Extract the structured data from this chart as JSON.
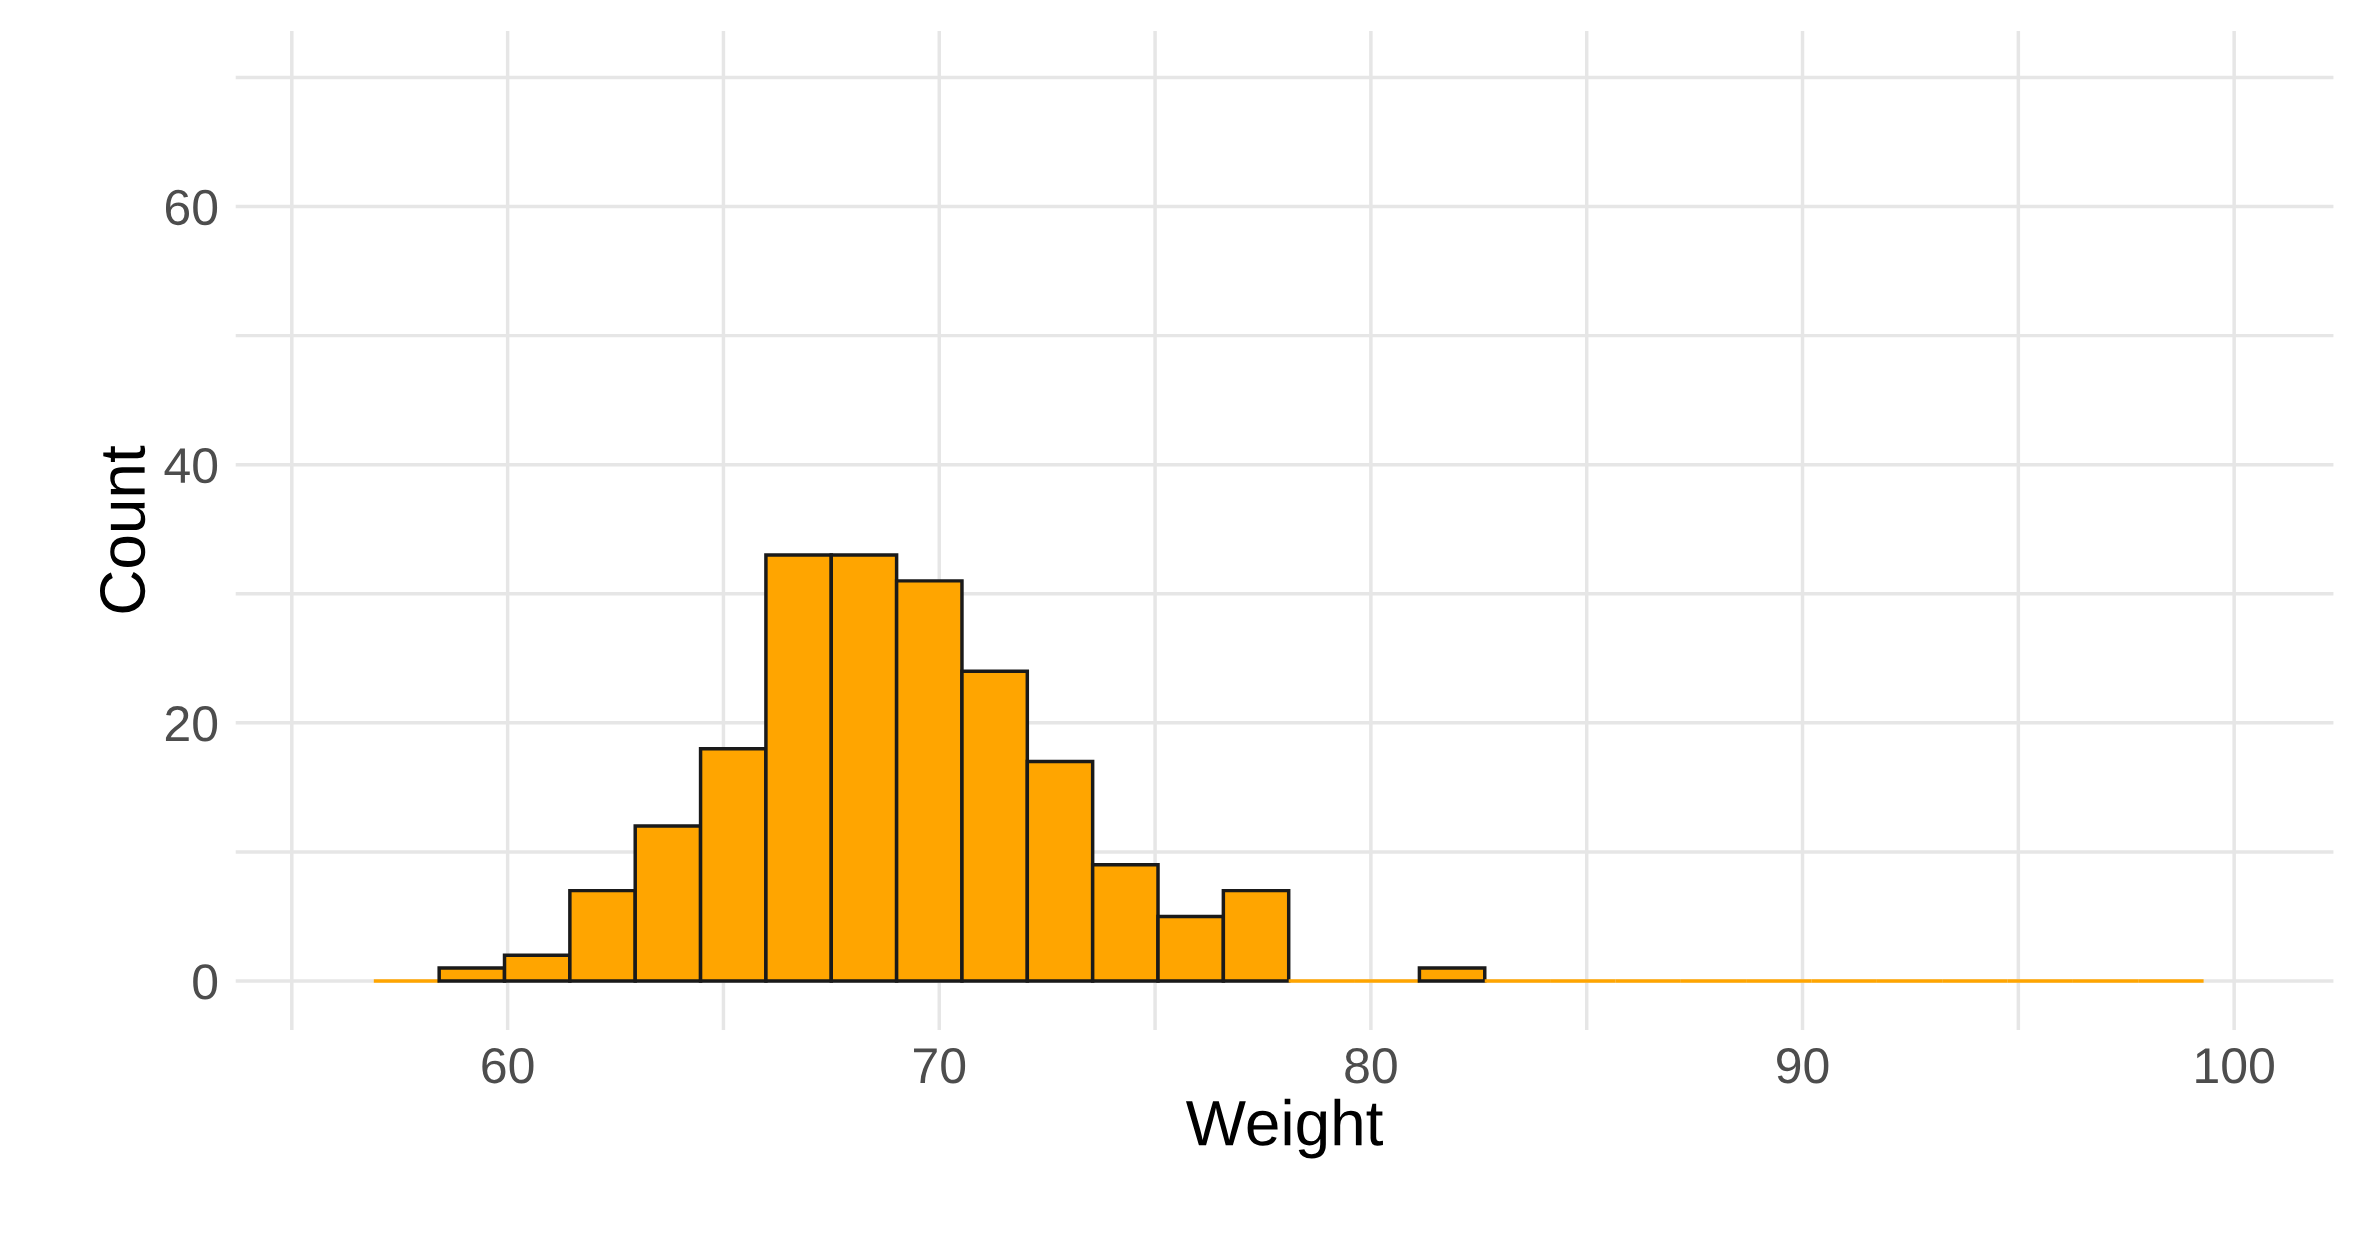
{
  "chart_data": {
    "type": "histogram",
    "xlabel": "Weight",
    "ylabel": "Count",
    "bins": [
      56.9,
      58.414,
      59.928,
      61.442,
      62.956,
      64.47,
      65.984,
      67.498,
      69.012,
      70.526,
      72.04,
      73.554,
      75.068,
      76.582,
      78.096,
      79.61,
      81.124,
      82.638,
      84.152,
      85.666,
      87.18,
      88.694,
      90.208,
      91.722,
      93.236,
      94.75,
      96.264,
      97.778,
      99.292
    ],
    "values": [
      0,
      1,
      2,
      7,
      12,
      18,
      33,
      33,
      31,
      24,
      17,
      9,
      5,
      7,
      0,
      0,
      1,
      0,
      0,
      0,
      0,
      0,
      0,
      0,
      0,
      0,
      0,
      0
    ],
    "color": "#ffa500",
    "xlim": [
      53.7,
      102.3
    ],
    "ylim": [
      -3.8,
      73.6
    ],
    "xticks": [
      {
        "value": 55,
        "label": null
      },
      60,
      {
        "value": 65,
        "label": null
      },
      70,
      {
        "value": 75,
        "label": null
      },
      80,
      {
        "value": 85,
        "label": null
      },
      90,
      {
        "value": 95,
        "label": null
      },
      100
    ],
    "yticks": [
      0,
      {
        "value": 10,
        "label": null
      },
      20,
      {
        "value": 30,
        "label": null
      },
      40,
      {
        "value": 50,
        "label": null
      },
      60,
      {
        "value": 70,
        "label": null
      }
    ],
    "grid": true
  }
}
